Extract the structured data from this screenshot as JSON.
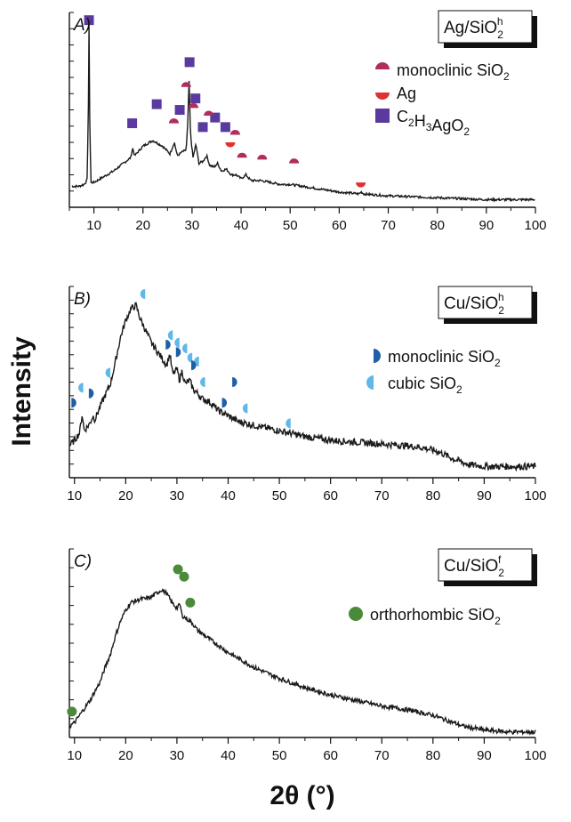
{
  "figure": {
    "ylabel": "Intensity",
    "xlabel": "2θ (°)"
  },
  "chart_data": [
    {
      "type": "line",
      "panel": "A)",
      "sample_label": {
        "base": "Ag/SiO",
        "sub": "2",
        "sup": "h"
      },
      "xlim": [
        5,
        100
      ],
      "x_ticks": [
        10,
        20,
        30,
        40,
        50,
        60,
        70,
        80,
        90,
        100
      ],
      "legend_position": "top-right",
      "trace_points": [
        [
          5.5,
          0.11
        ],
        [
          6,
          0.11
        ],
        [
          7,
          0.11
        ],
        [
          8,
          0.12
        ],
        [
          8.6,
          0.14
        ],
        [
          8.85,
          0.45
        ],
        [
          9,
          0.98
        ],
        [
          9.15,
          0.45
        ],
        [
          9.4,
          0.13
        ],
        [
          10,
          0.13
        ],
        [
          12,
          0.16
        ],
        [
          14,
          0.19
        ],
        [
          16,
          0.23
        ],
        [
          17.5,
          0.26
        ],
        [
          17.9,
          0.31
        ],
        [
          18.3,
          0.27
        ],
        [
          20,
          0.32
        ],
        [
          22,
          0.35
        ],
        [
          24,
          0.32
        ],
        [
          25.5,
          0.28
        ],
        [
          26.4,
          0.34
        ],
        [
          27,
          0.27
        ],
        [
          28,
          0.29
        ],
        [
          28.8,
          0.3
        ],
        [
          29.1,
          0.42
        ],
        [
          29.4,
          0.66
        ],
        [
          29.7,
          0.38
        ],
        [
          30.2,
          0.26
        ],
        [
          30.8,
          0.33
        ],
        [
          31.4,
          0.23
        ],
        [
          32.2,
          0.24
        ],
        [
          33,
          0.27
        ],
        [
          33.6,
          0.22
        ],
        [
          34.5,
          0.21
        ],
        [
          35.2,
          0.23
        ],
        [
          36,
          0.19
        ],
        [
          37,
          0.2
        ],
        [
          38,
          0.17
        ],
        [
          39,
          0.17
        ],
        [
          40,
          0.15
        ],
        [
          41,
          0.17
        ],
        [
          42,
          0.14
        ],
        [
          44,
          0.14
        ],
        [
          46,
          0.13
        ],
        [
          48,
          0.12
        ],
        [
          50,
          0.12
        ],
        [
          55,
          0.1
        ],
        [
          60,
          0.08
        ],
        [
          64,
          0.07
        ],
        [
          64.5,
          0.08
        ],
        [
          65,
          0.07
        ],
        [
          70,
          0.06
        ],
        [
          80,
          0.05
        ],
        [
          90,
          0.04
        ],
        [
          100,
          0.04
        ]
      ],
      "markers": [
        {
          "phase": "C2H3AgO2",
          "positions": [
            [
              9,
              0.98
            ],
            [
              17.8,
              0.44
            ],
            [
              22.8,
              0.54
            ],
            [
              27.5,
              0.51
            ],
            [
              29.5,
              0.76
            ],
            [
              30.7,
              0.57
            ],
            [
              32.2,
              0.42
            ],
            [
              34.7,
              0.47
            ],
            [
              36.8,
              0.42
            ]
          ]
        },
        {
          "phase": "monoclinic SiO2",
          "positions": [
            [
              26.3,
              0.44
            ],
            [
              28.8,
              0.63
            ],
            [
              30.3,
              0.52
            ],
            [
              33.4,
              0.48
            ],
            [
              38.8,
              0.38
            ],
            [
              40.2,
              0.26
            ],
            [
              44.3,
              0.25
            ],
            [
              50.8,
              0.23
            ]
          ]
        },
        {
          "phase": "Ag",
          "positions": [
            [
              37.8,
              0.34
            ],
            [
              64.4,
              0.13
            ]
          ]
        }
      ],
      "legend": [
        {
          "marker": "half-circle-top",
          "color": "#b02e5c",
          "text": "monoclinic SiO",
          "sub": "2"
        },
        {
          "marker": "half-circle-bottom",
          "color": "#e03030",
          "text": "Ag",
          "sub": ""
        },
        {
          "marker": "square",
          "color": "#5a3a9e",
          "text": "",
          "formula": [
            [
              "C",
              "2"
            ],
            [
              "H",
              "3"
            ],
            [
              "AgO",
              "2"
            ]
          ]
        }
      ]
    },
    {
      "type": "line",
      "panel": "B)",
      "sample_label": {
        "base": "Cu/SiO",
        "sub": "2",
        "sup": "h"
      },
      "xlim": [
        9,
        100
      ],
      "x_ticks": [
        10,
        20,
        30,
        40,
        50,
        60,
        70,
        80,
        90,
        100
      ],
      "legend_position": "top-right",
      "trace_points": [
        [
          9,
          0.17
        ],
        [
          10,
          0.2
        ],
        [
          11,
          0.24
        ],
        [
          11.5,
          0.34
        ],
        [
          11.9,
          0.25
        ],
        [
          13,
          0.29
        ],
        [
          13.6,
          0.33
        ],
        [
          14,
          0.31
        ],
        [
          15,
          0.38
        ],
        [
          16,
          0.44
        ],
        [
          17,
          0.5
        ],
        [
          18,
          0.62
        ],
        [
          19,
          0.75
        ],
        [
          20,
          0.84
        ],
        [
          21,
          0.9
        ],
        [
          22,
          0.92
        ],
        [
          22.8,
          0.85
        ],
        [
          24,
          0.78
        ],
        [
          25,
          0.72
        ],
        [
          26,
          0.68
        ],
        [
          27,
          0.64
        ],
        [
          28,
          0.6
        ],
        [
          28.6,
          0.66
        ],
        [
          29.2,
          0.55
        ],
        [
          30,
          0.58
        ],
        [
          30.5,
          0.52
        ],
        [
          31,
          0.57
        ],
        [
          31.6,
          0.5
        ],
        [
          32.5,
          0.52
        ],
        [
          33.2,
          0.47
        ],
        [
          34,
          0.45
        ],
        [
          35,
          0.42
        ],
        [
          36,
          0.41
        ],
        [
          37,
          0.39
        ],
        [
          38,
          0.36
        ],
        [
          40,
          0.33
        ],
        [
          42,
          0.3
        ],
        [
          45,
          0.28
        ],
        [
          50,
          0.25
        ],
        [
          55,
          0.22
        ],
        [
          60,
          0.2
        ],
        [
          65,
          0.19
        ],
        [
          70,
          0.18
        ],
        [
          75,
          0.17
        ],
        [
          78,
          0.16
        ],
        [
          81,
          0.14
        ],
        [
          84,
          0.1
        ],
        [
          87,
          0.07
        ],
        [
          90,
          0.06
        ],
        [
          95,
          0.06
        ],
        [
          100,
          0.06
        ]
      ],
      "markers": [
        {
          "phase": "cubic SiO2",
          "positions": [
            [
              11.7,
              0.48
            ],
            [
              17,
              0.56
            ],
            [
              23.8,
              0.98
            ],
            [
              29.2,
              0.76
            ],
            [
              30.5,
              0.72
            ],
            [
              32,
              0.69
            ],
            [
              33,
              0.64
            ],
            [
              34.3,
              0.62
            ],
            [
              35.5,
              0.51
            ],
            [
              43.8,
              0.37
            ],
            [
              52.2,
              0.29
            ]
          ]
        },
        {
          "phase": "monoclinic SiO2",
          "positions": [
            [
              9.4,
              0.4
            ],
            [
              12.8,
              0.45
            ],
            [
              27.8,
              0.71
            ],
            [
              29.8,
              0.67
            ],
            [
              32.8,
              0.6
            ],
            [
              40.8,
              0.51
            ],
            [
              38.8,
              0.4
            ]
          ]
        }
      ],
      "legend": [
        {
          "marker": "half-circle-right",
          "color": "#1f5fa6",
          "text": "monoclinic SiO",
          "sub": "2"
        },
        {
          "marker": "half-circle-left",
          "color": "#5fb8e8",
          "text": "cubic SiO",
          "sub": "2"
        }
      ]
    },
    {
      "type": "line",
      "panel": "C)",
      "sample_label": {
        "base": "Cu/SiO",
        "sub": "2",
        "sup": "f"
      },
      "xlim": [
        9,
        100
      ],
      "x_ticks": [
        10,
        20,
        30,
        40,
        50,
        60,
        70,
        80,
        90,
        100
      ],
      "legend_position": "top-right",
      "trace_points": [
        [
          9,
          0.06
        ],
        [
          10,
          0.08
        ],
        [
          11,
          0.12
        ],
        [
          12,
          0.16
        ],
        [
          13,
          0.2
        ],
        [
          14,
          0.25
        ],
        [
          15,
          0.3
        ],
        [
          16,
          0.38
        ],
        [
          17,
          0.45
        ],
        [
          18,
          0.55
        ],
        [
          19,
          0.63
        ],
        [
          20,
          0.69
        ],
        [
          21,
          0.73
        ],
        [
          22,
          0.74
        ],
        [
          23,
          0.75
        ],
        [
          24,
          0.75
        ],
        [
          25,
          0.76
        ],
        [
          26,
          0.78
        ],
        [
          27,
          0.8
        ],
        [
          28,
          0.78
        ],
        [
          29,
          0.73
        ],
        [
          30,
          0.7
        ],
        [
          30.6,
          0.72
        ],
        [
          31,
          0.66
        ],
        [
          32,
          0.64
        ],
        [
          33,
          0.62
        ],
        [
          34,
          0.58
        ],
        [
          36,
          0.54
        ],
        [
          38,
          0.5
        ],
        [
          40,
          0.46
        ],
        [
          45,
          0.38
        ],
        [
          50,
          0.32
        ],
        [
          55,
          0.27
        ],
        [
          60,
          0.23
        ],
        [
          65,
          0.2
        ],
        [
          70,
          0.17
        ],
        [
          75,
          0.15
        ],
        [
          80,
          0.12
        ],
        [
          83,
          0.09
        ],
        [
          86,
          0.06
        ],
        [
          90,
          0.04
        ],
        [
          95,
          0.03
        ],
        [
          100,
          0.03
        ]
      ],
      "markers": [
        {
          "phase": "orthorhombic SiO2",
          "positions": [
            [
              9.5,
              0.14
            ],
            [
              30.2,
              0.91
            ],
            [
              31.4,
              0.87
            ],
            [
              32.6,
              0.73
            ]
          ]
        }
      ],
      "legend": [
        {
          "marker": "circle",
          "color": "#4a8a3a",
          "text": "orthorhombic SiO",
          "sub": "2"
        }
      ]
    }
  ]
}
